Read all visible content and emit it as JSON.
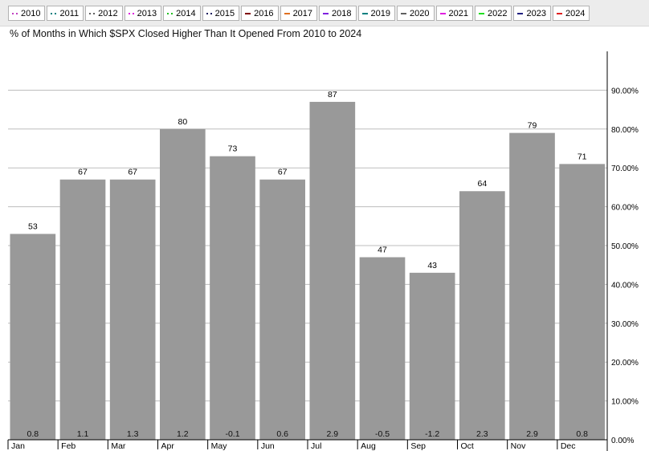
{
  "legend": [
    {
      "label": "2010",
      "color": "#c040c0",
      "style": "dotted"
    },
    {
      "label": "2011",
      "color": "#008080",
      "style": "dotted"
    },
    {
      "label": "2012",
      "color": "#606060",
      "style": "dotted"
    },
    {
      "label": "2013",
      "color": "#e020e0",
      "style": "dotted"
    },
    {
      "label": "2014",
      "color": "#20c020",
      "style": "dotted"
    },
    {
      "label": "2015",
      "color": "#202060",
      "style": "dotted"
    },
    {
      "label": "2016",
      "color": "#800000",
      "style": "solid"
    },
    {
      "label": "2017",
      "color": "#e07020",
      "style": "solid"
    },
    {
      "label": "2018",
      "color": "#8020e0",
      "style": "solid"
    },
    {
      "label": "2019",
      "color": "#008080",
      "style": "solid"
    },
    {
      "label": "2020",
      "color": "#606060",
      "style": "solid"
    },
    {
      "label": "2021",
      "color": "#e020e0",
      "style": "solid"
    },
    {
      "label": "2022",
      "color": "#20e020",
      "style": "solid"
    },
    {
      "label": "2023",
      "color": "#202080",
      "style": "solid"
    },
    {
      "label": "2024",
      "color": "#e02020",
      "style": "solid"
    }
  ],
  "chart_data": {
    "type": "bar",
    "title": "% of Months in Which $SPX Closed Higher Than It Opened From 2010 to 2024",
    "xlabel": "",
    "ylabel": "",
    "categories": [
      "Jan",
      "Feb",
      "Mar",
      "Apr",
      "May",
      "Jun",
      "Jul",
      "Aug",
      "Sep",
      "Oct",
      "Nov",
      "Dec"
    ],
    "values": [
      53,
      67,
      67,
      80,
      73,
      67,
      87,
      47,
      43,
      64,
      79,
      71
    ],
    "value_labels": [
      "53",
      "67",
      "67",
      "80",
      "73",
      "67",
      "87",
      "47",
      "43",
      "64",
      "79",
      "71"
    ],
    "bottom_labels": [
      "0.8",
      "1.1",
      "1.3",
      "1.2",
      "-0.1",
      "0.6",
      "2.9",
      "-0.5",
      "-1.2",
      "2.3",
      "2.9",
      "0.8"
    ],
    "ylim": [
      0,
      100
    ],
    "yticks": [
      0,
      10,
      20,
      30,
      40,
      50,
      60,
      70,
      80,
      90
    ],
    "ytick_labels": [
      "0.00%",
      "10.00%",
      "20.00%",
      "30.00%",
      "40.00%",
      "50.00%",
      "60.00%",
      "70.00%",
      "80.00%",
      "90.00%"
    ],
    "y_axis_position": "right",
    "grid": true,
    "bar_color": "#999999",
    "grid_color": "#bdbdbd"
  }
}
